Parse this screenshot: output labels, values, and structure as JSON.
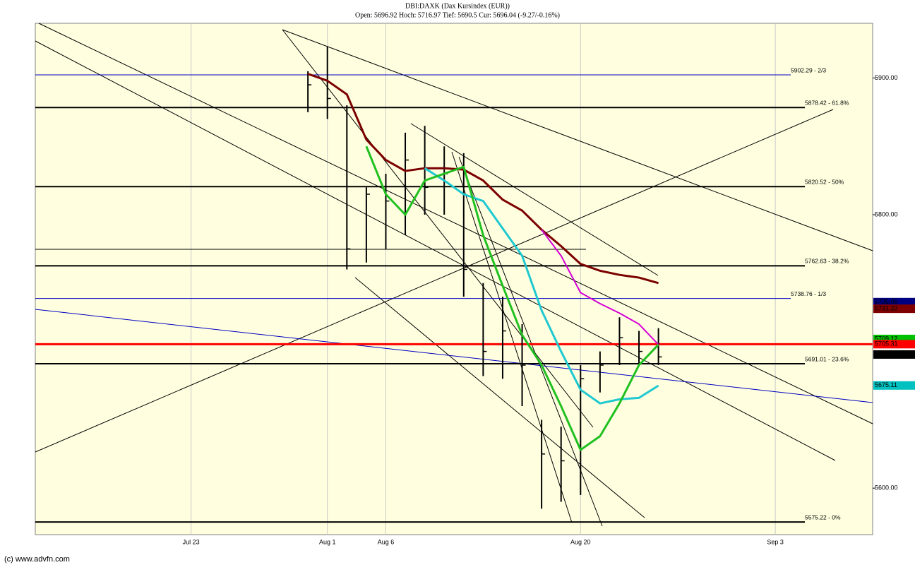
{
  "chart_data": {
    "type": "ohlc",
    "title": "DBI:DAXK (Dax Kursindex (EUR))",
    "subtitle": "Open: 5696.92 Hoch: 5716.97 Tief: 5690.5 Cur: 5696.04 (-9.27/-0.16%)",
    "source": "(c) www.advfn.com",
    "categories": [
      null,
      null,
      null,
      null,
      null,
      null,
      null,
      null,
      "Jul 23",
      null,
      null,
      null,
      null,
      null,
      null,
      "Aug 1",
      null,
      null,
      "Aug 6",
      null,
      null,
      null,
      null,
      null,
      null,
      null,
      null,
      null,
      "Aug 20",
      null,
      null,
      null,
      null,
      null,
      null,
      null,
      null,
      null,
      "Sep 3",
      null,
      null,
      null,
      null
    ],
    "high": [
      null,
      null,
      null,
      null,
      null,
      null,
      null,
      null,
      null,
      null,
      null,
      null,
      null,
      null,
      5905,
      5923,
      5880,
      5820,
      5830,
      5860,
      5865,
      5850,
      5845,
      5750,
      5740,
      5720,
      5650,
      5645,
      5690,
      5700,
      5725,
      5715,
      5717,
      null,
      null,
      null,
      null,
      null,
      null,
      null,
      null,
      null,
      null
    ],
    "low": [
      null,
      null,
      null,
      null,
      null,
      null,
      null,
      null,
      null,
      null,
      null,
      null,
      null,
      null,
      5875,
      5870,
      5760,
      5765,
      5775,
      5785,
      5800,
      5800,
      5740,
      5682,
      5680,
      5660,
      5585,
      5590,
      5595,
      5670,
      5690,
      5690,
      5690,
      null,
      null,
      null,
      null,
      null,
      null,
      null,
      null,
      null,
      null
    ],
    "close": [
      null,
      null,
      null,
      null,
      null,
      null,
      null,
      null,
      null,
      null,
      null,
      null,
      null,
      null,
      5895,
      5885,
      5775,
      5815,
      5810,
      5840,
      5820,
      5830,
      5760,
      5700,
      5715,
      5690,
      5625,
      5620,
      5680,
      5690,
      5710,
      5700,
      5696,
      null,
      null,
      null,
      null,
      null,
      null,
      null,
      null,
      null,
      null
    ],
    "color": "#000000",
    "lines": [
      {
        "color": "#7b0000",
        "values": [
          null,
          null,
          null,
          null,
          null,
          null,
          null,
          null,
          null,
          null,
          null,
          null,
          null,
          null,
          5903,
          5898,
          5888,
          5855,
          5840,
          5832,
          5834,
          5834,
          5833,
          5825,
          5811,
          5803,
          5789,
          5777,
          5764,
          5759,
          5756,
          5754,
          5750,
          null,
          null,
          null,
          null,
          null,
          null,
          null,
          null,
          null,
          null
        ]
      },
      {
        "color": "#d400d4",
        "values": [
          null,
          null,
          null,
          null,
          null,
          null,
          null,
          null,
          null,
          null,
          null,
          null,
          null,
          null,
          null,
          null,
          null,
          null,
          null,
          null,
          null,
          null,
          null,
          null,
          null,
          null,
          5789,
          5770,
          5743,
          5735,
          5728,
          5720,
          5705,
          null,
          null,
          null,
          null,
          null,
          null,
          null,
          null,
          null,
          null
        ]
      },
      {
        "color": "#20c8d0",
        "values": [
          null,
          null,
          null,
          null,
          null,
          null,
          null,
          null,
          null,
          null,
          null,
          null,
          null,
          null,
          null,
          null,
          null,
          null,
          null,
          null,
          5834,
          5825,
          5815,
          5810,
          5790,
          5770,
          5730,
          5700,
          5672,
          5662,
          5665,
          5666,
          5675,
          null,
          null,
          null,
          null,
          null,
          null,
          null,
          null,
          null,
          null
        ]
      },
      {
        "color": "#20c020",
        "values": [
          null,
          null,
          null,
          null,
          null,
          null,
          null,
          null,
          null,
          null,
          null,
          null,
          null,
          null,
          null,
          null,
          null,
          5850,
          5815,
          5800,
          5825,
          5830,
          5835,
          5785,
          5748,
          5712,
          5690,
          5660,
          5628,
          5638,
          5662,
          5690,
          5705,
          null,
          null,
          null,
          null,
          null,
          null,
          null,
          null,
          null,
          null
        ]
      }
    ],
    "levels": [
      {
        "value": 5902.29,
        "label": "5902.29 - 2/3",
        "color": "#0000c0"
      },
      {
        "value": 5878.42,
        "label": "5878.42 - 61.8%",
        "color": "#000000"
      },
      {
        "value": 5820.52,
        "label": "5820.52 - 50%",
        "color": "#000000"
      },
      {
        "value": 5762.63,
        "label": "5762.63 - 38.2%",
        "color": "#000000"
      },
      {
        "value": 5738.76,
        "label": "5738.76 - 1/3",
        "color": "#0000c0"
      },
      {
        "value": 5705.31,
        "color": "#ff0000"
      },
      {
        "value": 5691.01,
        "label": "5691.01 - 23.6%",
        "color": "#000000"
      },
      {
        "value": 5575.22,
        "label": "5575.22 - 0%",
        "color": "#000000"
      }
    ],
    "markers": [
      {
        "value": 5736.06,
        "color": "#000080"
      },
      {
        "value": 5731.22,
        "color": "#800000"
      },
      {
        "value": 5709.12,
        "color": "#00c000"
      },
      {
        "value": 5705.31,
        "color": "#ff0000"
      },
      {
        "value": 5697.76,
        "color": "#000000"
      },
      {
        "value": 5675.11,
        "color": "#00c0c0"
      }
    ],
    "ylim": [
      5566,
      5940
    ],
    "yticks": [
      {
        "value": 5600,
        "label": "5600.00"
      },
      {
        "value": 5800,
        "label": "5800.00"
      },
      {
        "value": 5900,
        "label": "5900.00"
      }
    ],
    "grid": true
  }
}
